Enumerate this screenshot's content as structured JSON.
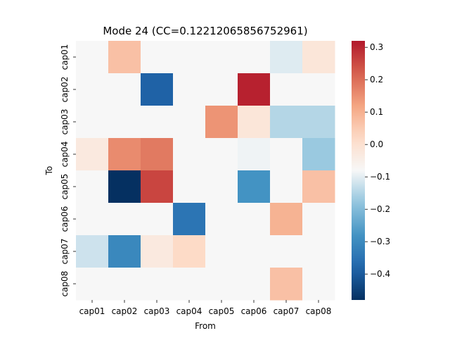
{
  "chart_data": {
    "type": "heatmap",
    "title": "Mode 24 (CC=0.12212065856752961)",
    "xlabel": "From",
    "ylabel": "To",
    "x_categories": [
      "cap01",
      "cap02",
      "cap03",
      "cap04",
      "cap05",
      "cap06",
      "cap07",
      "cap08"
    ],
    "y_categories": [
      "cap01",
      "cap02",
      "cap03",
      "cap04",
      "cap05",
      "cap06",
      "cap07",
      "cap08"
    ],
    "values": [
      [
        0.0,
        0.12,
        0.0,
        0.0,
        0.0,
        0.0,
        -0.03,
        0.05
      ],
      [
        0.0,
        0.0,
        -0.37,
        0.0,
        0.0,
        0.31,
        0.0,
        0.0
      ],
      [
        0.0,
        0.0,
        0.0,
        0.0,
        0.18,
        0.05,
        -0.08,
        -0.08
      ],
      [
        0.04,
        0.19,
        0.21,
        0.0,
        0.0,
        -0.01,
        0.0,
        -0.11
      ],
      [
        0.0,
        -0.48,
        0.27,
        0.0,
        0.0,
        -0.24,
        0.0,
        0.12
      ],
      [
        0.0,
        0.0,
        0.0,
        -0.32,
        0.0,
        0.0,
        0.14,
        0.0
      ],
      [
        -0.05,
        -0.27,
        0.04,
        0.08,
        0.0,
        0.0,
        0.0,
        0.0
      ],
      [
        0.0,
        0.0,
        0.0,
        0.0,
        0.0,
        0.0,
        0.12,
        0.0
      ]
    ],
    "colorscale": "RdBu_r",
    "vmin": -0.48,
    "vmax": 0.32,
    "colorbar_ticks": [
      -0.4,
      -0.3,
      -0.2,
      -0.1,
      0.0,
      0.1,
      0.2,
      0.3
    ],
    "colorbar_tick_labels": [
      "−0.4",
      "−0.3",
      "−0.2",
      "−0.1",
      "0.0",
      "0.1",
      "0.2",
      "0.3"
    ]
  }
}
